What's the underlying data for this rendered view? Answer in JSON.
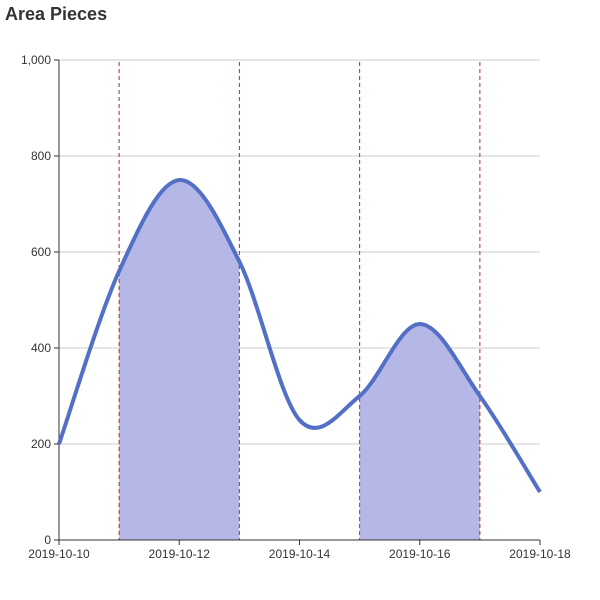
{
  "title": "Area Pieces",
  "colors": {
    "line": "#5470c6",
    "area": "#b5b8e6",
    "grid": "#cccccc",
    "axis": "#333333",
    "markline": "#a03333"
  },
  "chart_data": {
    "type": "area",
    "title": "Area Pieces",
    "xlabel": "",
    "ylabel": "",
    "x": [
      "2019-10-10",
      "2019-10-11",
      "2019-10-12",
      "2019-10-13",
      "2019-10-14",
      "2019-10-15",
      "2019-10-16",
      "2019-10-17",
      "2019-10-18"
    ],
    "values": [
      200,
      560,
      750,
      580,
      250,
      300,
      450,
      300,
      100
    ],
    "x_tick_labels": [
      "2019-10-10",
      "2019-10-12",
      "2019-10-14",
      "2019-10-16",
      "2019-10-18"
    ],
    "y_tick_labels": [
      "0",
      "200",
      "400",
      "600",
      "800",
      "1,000"
    ],
    "y_ticks": [
      0,
      200,
      400,
      600,
      800,
      1000
    ],
    "ylim": [
      0,
      1000
    ],
    "grid": true,
    "smooth": true,
    "shaded_pieces": [
      {
        "from": "2019-10-11",
        "to": "2019-10-13"
      },
      {
        "from": "2019-10-15",
        "to": "2019-10-17"
      }
    ],
    "mark_lines": [
      "2019-10-11",
      "2019-10-13",
      "2019-10-15",
      "2019-10-17"
    ]
  }
}
